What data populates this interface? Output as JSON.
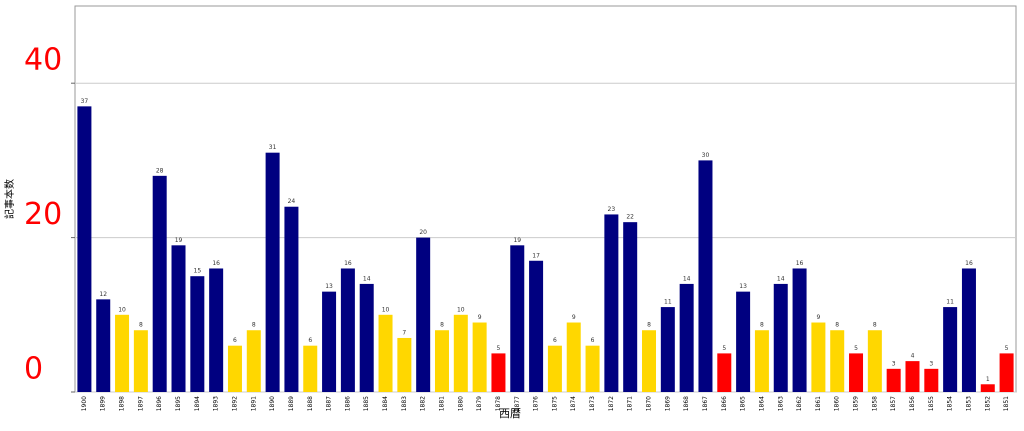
{
  "chart_data": {
    "type": "bar",
    "x_label": "西暦",
    "y_label": "記事本数",
    "categories": [
      "1900",
      "1899",
      "1898",
      "1897",
      "1896",
      "1895",
      "1894",
      "1893",
      "1892",
      "1891",
      "1890",
      "1889",
      "1888",
      "1887",
      "1886",
      "1885",
      "1884",
      "1883",
      "1882",
      "1881",
      "1880",
      "1879",
      "1878",
      "1877",
      "1876",
      "1875",
      "1874",
      "1873",
      "1872",
      "1871",
      "1870",
      "1869",
      "1868",
      "1867",
      "1866",
      "1865",
      "1864",
      "1863",
      "1862",
      "1861",
      "1860",
      "1859",
      "1858",
      "1857",
      "1856",
      "1855",
      "1854",
      "1853",
      "1852",
      "1851"
    ],
    "values": [
      37,
      12,
      10,
      8,
      28,
      19,
      15,
      16,
      6,
      8,
      31,
      24,
      6,
      13,
      16,
      14,
      10,
      7,
      20,
      8,
      10,
      9,
      5,
      19,
      17,
      6,
      9,
      6,
      23,
      22,
      8,
      11,
      14,
      30,
      5,
      13,
      8,
      14,
      16,
      9,
      8,
      5,
      8,
      3,
      4,
      3,
      11,
      16,
      1,
      5
    ],
    "colors": [
      "#000080",
      "#000080",
      "#ffd700",
      "#ffd700",
      "#000080",
      "#000080",
      "#000080",
      "#000080",
      "#ffd700",
      "#ffd700",
      "#000080",
      "#000080",
      "#ffd700",
      "#000080",
      "#000080",
      "#000080",
      "#ffd700",
      "#ffd700",
      "#000080",
      "#ffd700",
      "#ffd700",
      "#ffd700",
      "#ff0000",
      "#000080",
      "#000080",
      "#ffd700",
      "#ffd700",
      "#ffd700",
      "#000080",
      "#000080",
      "#ffd700",
      "#000080",
      "#000080",
      "#000080",
      "#ff0000",
      "#000080",
      "#ffd700",
      "#000080",
      "#000080",
      "#ffd700",
      "#ffd700",
      "#ff0000",
      "#ffd700",
      "#ff0000",
      "#ff0000",
      "#ff0000",
      "#000080",
      "#000080",
      "#ff0000",
      "#ff0000"
    ],
    "ylim": [
      0,
      50
    ],
    "yticks": [
      0,
      20,
      40
    ],
    "grid": true,
    "ytick_color": "#ff0000"
  }
}
